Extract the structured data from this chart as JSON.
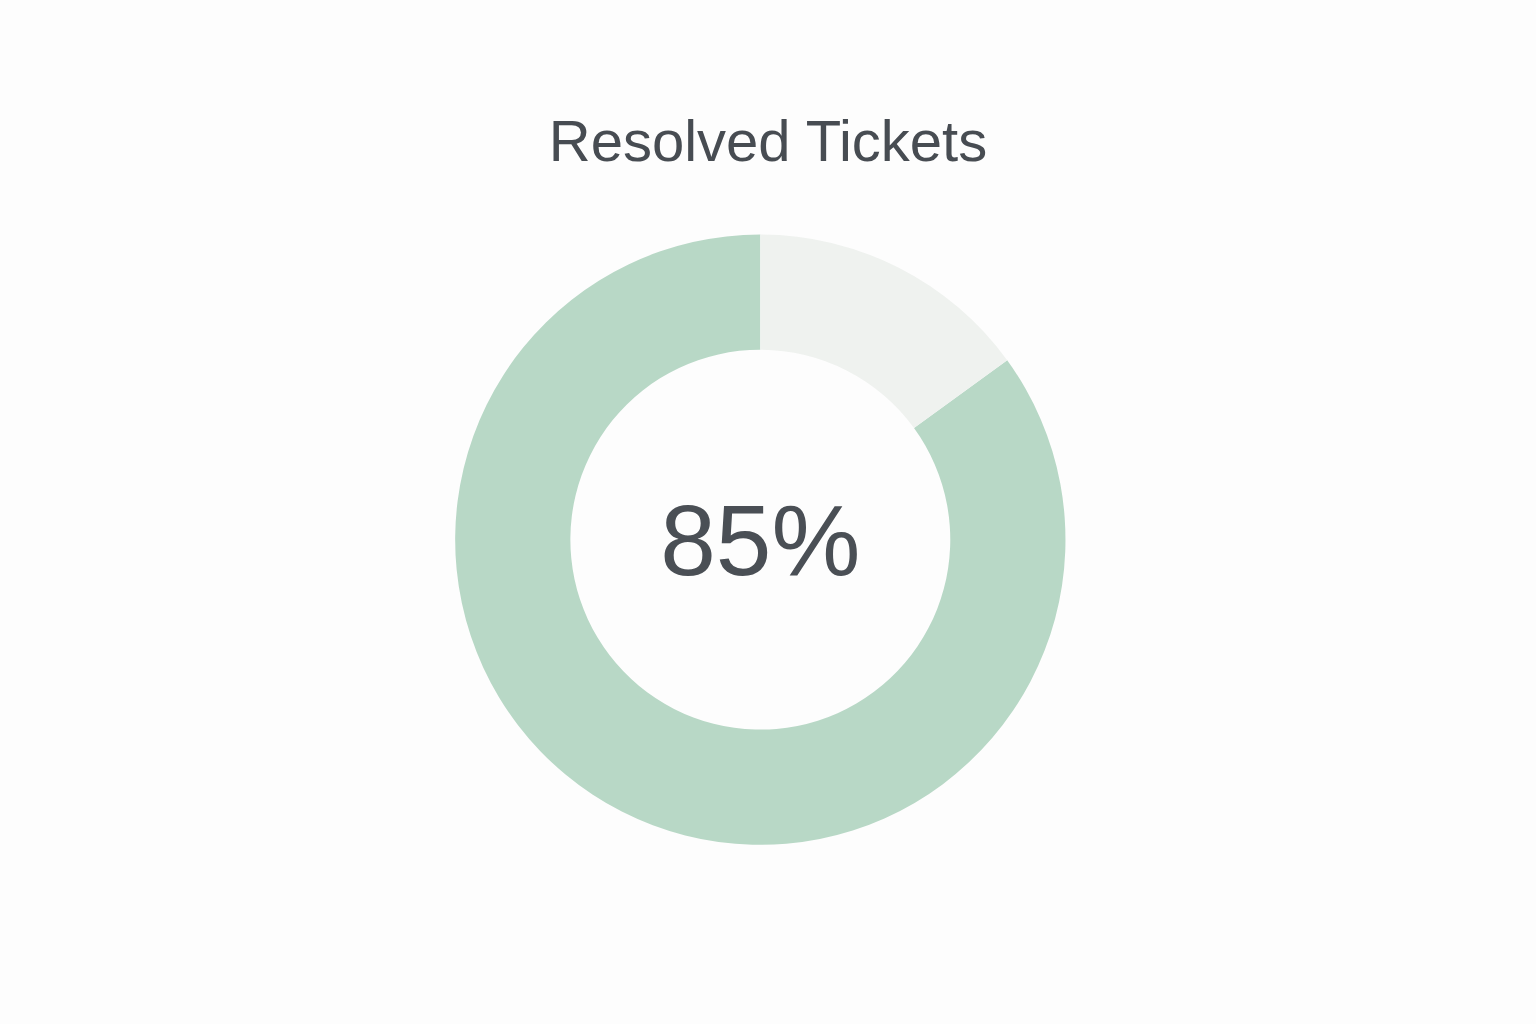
{
  "chart_data": {
    "type": "donut",
    "title": "Resolved Tickets",
    "categories": [
      null,
      null
    ],
    "values": [
      85,
      15
    ],
    "colors": [
      "#b8d8c6",
      "#eff2ef"
    ],
    "value_labels": [
      "85%",
      null
    ]
  }
}
